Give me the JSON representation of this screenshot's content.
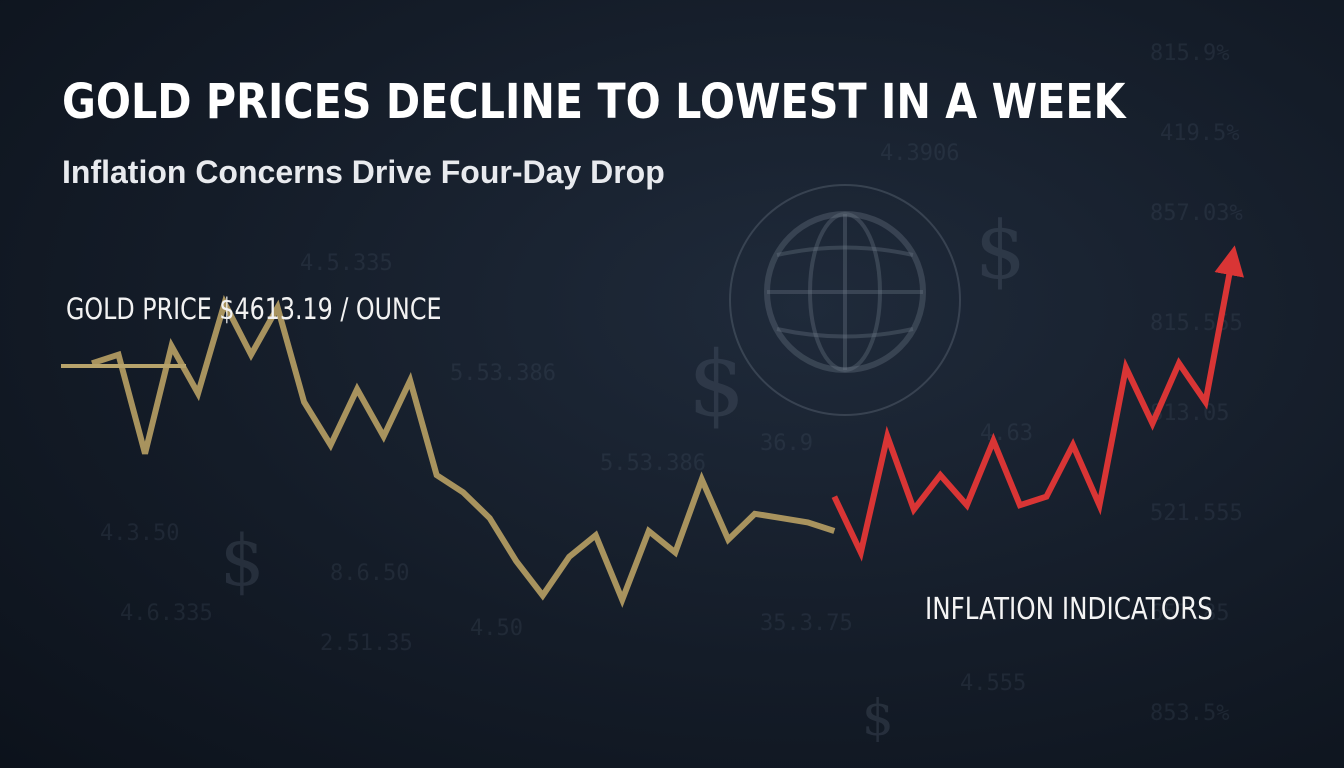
{
  "title": "GOLD PRICES DECLINE TO LOWEST IN A WEEK",
  "subtitle": "Inflation Concerns Drive Four-Day Drop",
  "price_label": "GOLD PRICE $4613.19 / OUNCE",
  "inflation_label": "INFLATION INDICATORS",
  "colors": {
    "gold_series": "#a8935e",
    "inflation_series": "#d93535",
    "background": "#141c28"
  },
  "icons": [
    "globe-icon",
    "dollar-icon"
  ],
  "chart_data": {
    "type": "line",
    "title": "",
    "xlabel": "",
    "ylabel": "",
    "grid": false,
    "x": [
      0,
      1,
      2,
      3,
      4,
      5,
      6,
      7,
      8,
      9,
      10,
      11,
      12,
      13,
      14,
      15,
      16,
      17,
      18,
      19,
      20,
      21,
      22,
      23,
      24,
      25,
      26,
      27,
      28,
      29,
      30,
      31,
      32,
      33,
      34,
      35,
      36,
      37,
      38,
      39,
      40,
      41,
      42,
      43
    ],
    "ylim": [
      0,
      100
    ],
    "series": [
      {
        "name": "GOLD PRICE",
        "color": "#a8935e",
        "values": [
          69,
          71,
          48,
          73,
          62,
          83,
          71,
          82,
          60,
          50,
          63,
          52,
          65,
          43,
          39,
          33,
          23,
          15,
          24,
          29,
          14,
          30,
          25,
          42,
          28,
          34,
          33,
          32,
          30,
          null,
          null,
          null,
          null,
          null,
          null,
          null,
          null,
          null,
          null,
          null,
          null,
          null,
          null,
          null
        ]
      },
      {
        "name": "INFLATION INDICATORS",
        "color": "#d93535",
        "values": [
          null,
          null,
          null,
          null,
          null,
          null,
          null,
          null,
          null,
          null,
          null,
          null,
          null,
          null,
          null,
          null,
          null,
          null,
          null,
          null,
          null,
          null,
          null,
          null,
          null,
          null,
          null,
          null,
          38,
          25,
          52,
          35,
          43,
          36,
          51,
          36,
          38,
          50,
          36,
          68,
          55,
          69,
          60,
          93
        ]
      }
    ]
  }
}
